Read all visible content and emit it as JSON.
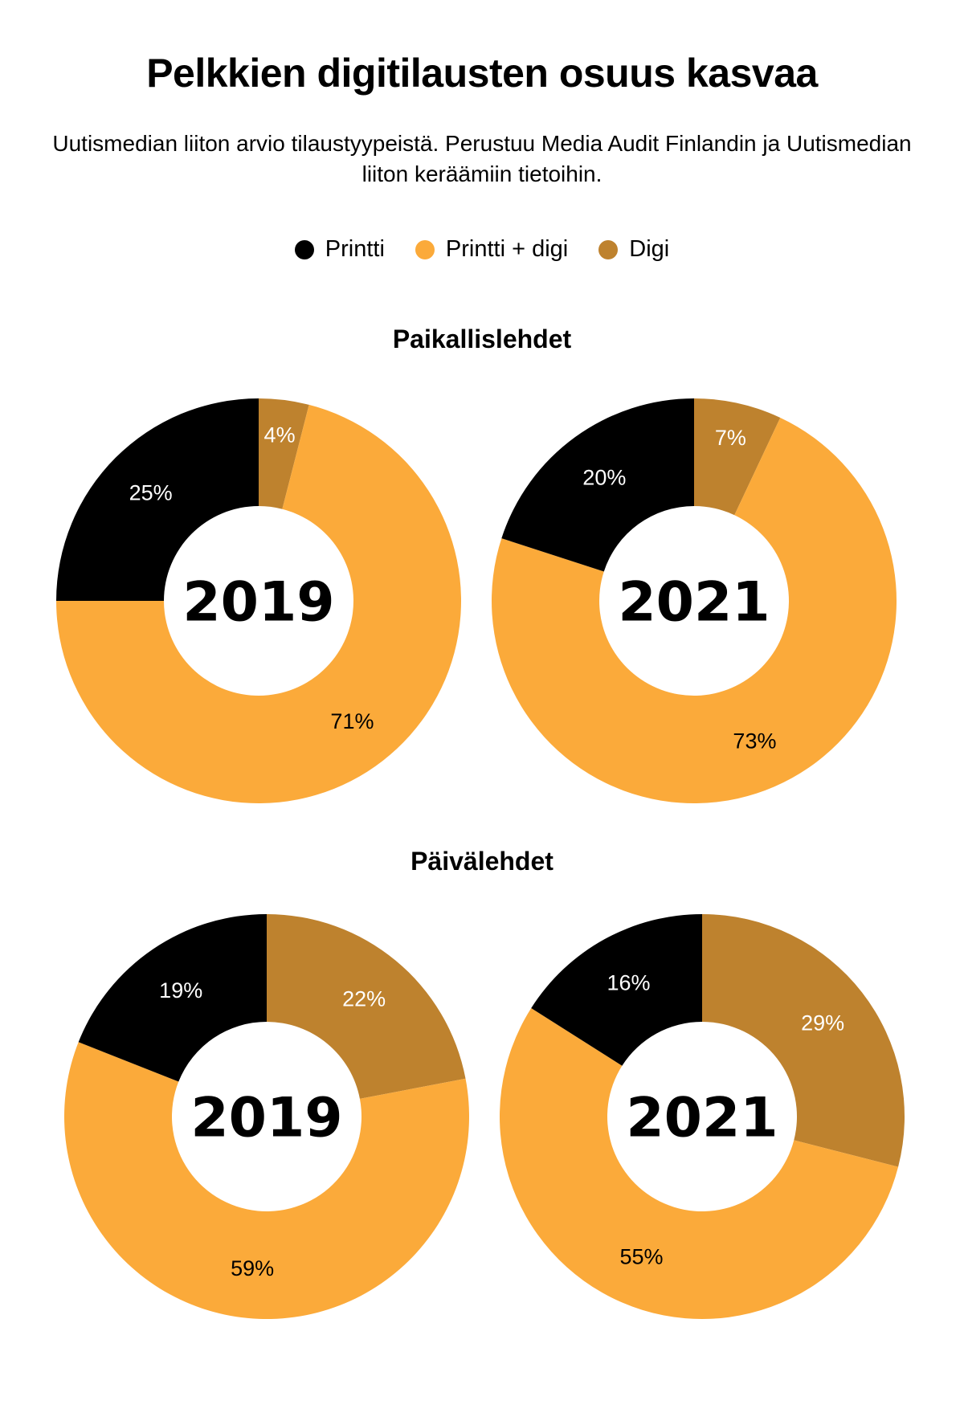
{
  "title": "Pelkkien digitilausten osuus kasvaa",
  "subtitle": "Uutismedian liiton arvio tilaustyypeistä. Perustuu Media Audit Finlandin ja Uutismedian liiton keräämiin tietoihin.",
  "legend": [
    {
      "label": "Printti",
      "color": "#000000"
    },
    {
      "label": "Printti + digi",
      "color": "#FBAA3A"
    },
    {
      "label": "Digi",
      "color": "#BE822E"
    }
  ],
  "chart_data": [
    {
      "type": "pie",
      "variant": "donut",
      "section": "Paikallislehdet",
      "center_label": "2019",
      "slices": [
        {
          "name": "Digi",
          "value": 4,
          "label": "4%"
        },
        {
          "name": "Printti + digi",
          "value": 71,
          "label": "71%"
        },
        {
          "name": "Printti",
          "value": 25,
          "label": "25%"
        }
      ]
    },
    {
      "type": "pie",
      "variant": "donut",
      "section": "Paikallislehdet",
      "center_label": "2021",
      "slices": [
        {
          "name": "Digi",
          "value": 7,
          "label": "7%"
        },
        {
          "name": "Printti + digi",
          "value": 73,
          "label": "73%"
        },
        {
          "name": "Printti",
          "value": 20,
          "label": "20%"
        }
      ]
    },
    {
      "type": "pie",
      "variant": "donut",
      "section": "Päivälehdet",
      "center_label": "2019",
      "slices": [
        {
          "name": "Digi",
          "value": 22,
          "label": "22%"
        },
        {
          "name": "Printti + digi",
          "value": 59,
          "label": "59%"
        },
        {
          "name": "Printti",
          "value": 19,
          "label": "19%"
        }
      ]
    },
    {
      "type": "pie",
      "variant": "donut",
      "section": "Päivälehdet",
      "center_label": "2021",
      "slices": [
        {
          "name": "Digi",
          "value": 29,
          "label": "29%"
        },
        {
          "name": "Printti + digi",
          "value": 55,
          "label": "55%"
        },
        {
          "name": "Printti",
          "value": 16,
          "label": "16%"
        }
      ]
    }
  ],
  "sections": [
    "Paikallislehdet",
    "Päivälehdet"
  ]
}
